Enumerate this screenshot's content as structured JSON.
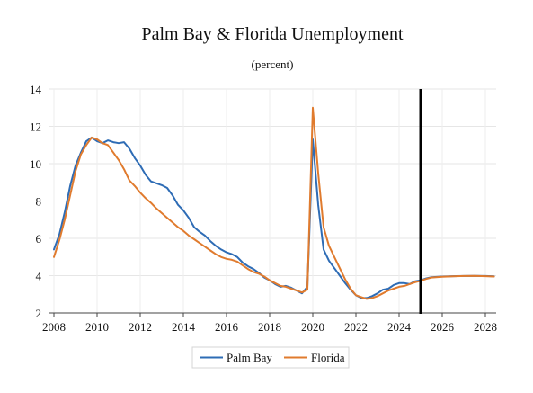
{
  "chart_data": {
    "type": "line",
    "title": "Palm Bay & Florida Unemployment",
    "subtitle": "(percent)",
    "xlabel": "",
    "ylabel": "",
    "xlim": [
      2007.75,
      2028.5
    ],
    "ylim": [
      2,
      14
    ],
    "x_ticks": [
      2008,
      2010,
      2012,
      2014,
      2016,
      2018,
      2020,
      2022,
      2024,
      2026,
      2028
    ],
    "y_ticks": [
      2,
      4,
      6,
      8,
      10,
      12,
      14
    ],
    "grid": true,
    "legend_position": "bottom",
    "forecast_marker_x": 2025.0,
    "series": [
      {
        "name": "Palm Bay",
        "color": "#2e6cb5",
        "points": [
          [
            2008.0,
            5.4
          ],
          [
            2008.25,
            6.2
          ],
          [
            2008.5,
            7.4
          ],
          [
            2008.75,
            8.8
          ],
          [
            2009.0,
            9.9
          ],
          [
            2009.25,
            10.6
          ],
          [
            2009.5,
            11.2
          ],
          [
            2009.75,
            11.4
          ],
          [
            2010.0,
            11.2
          ],
          [
            2010.25,
            11.1
          ],
          [
            2010.5,
            11.25
          ],
          [
            2010.75,
            11.15
          ],
          [
            2011.0,
            11.1
          ],
          [
            2011.25,
            11.15
          ],
          [
            2011.5,
            10.8
          ],
          [
            2011.75,
            10.3
          ],
          [
            2012.0,
            9.9
          ],
          [
            2012.25,
            9.4
          ],
          [
            2012.5,
            9.05
          ],
          [
            2012.75,
            8.95
          ],
          [
            2013.0,
            8.85
          ],
          [
            2013.25,
            8.7
          ],
          [
            2013.5,
            8.3
          ],
          [
            2013.75,
            7.8
          ],
          [
            2014.0,
            7.5
          ],
          [
            2014.25,
            7.1
          ],
          [
            2014.5,
            6.6
          ],
          [
            2014.75,
            6.35
          ],
          [
            2015.0,
            6.15
          ],
          [
            2015.25,
            5.85
          ],
          [
            2015.5,
            5.6
          ],
          [
            2015.75,
            5.4
          ],
          [
            2016.0,
            5.25
          ],
          [
            2016.25,
            5.15
          ],
          [
            2016.5,
            5.0
          ],
          [
            2016.75,
            4.7
          ],
          [
            2017.0,
            4.5
          ],
          [
            2017.25,
            4.35
          ],
          [
            2017.5,
            4.15
          ],
          [
            2017.75,
            3.9
          ],
          [
            2018.0,
            3.75
          ],
          [
            2018.25,
            3.55
          ],
          [
            2018.5,
            3.4
          ],
          [
            2018.75,
            3.45
          ],
          [
            2019.0,
            3.35
          ],
          [
            2019.25,
            3.2
          ],
          [
            2019.5,
            3.05
          ],
          [
            2019.75,
            3.4
          ],
          [
            2020.0,
            11.3
          ],
          [
            2020.25,
            7.8
          ],
          [
            2020.5,
            5.4
          ],
          [
            2020.75,
            4.8
          ],
          [
            2021.0,
            4.4
          ],
          [
            2021.25,
            4.0
          ],
          [
            2021.5,
            3.6
          ],
          [
            2021.75,
            3.25
          ],
          [
            2022.0,
            2.95
          ],
          [
            2022.25,
            2.8
          ],
          [
            2022.5,
            2.8
          ],
          [
            2022.75,
            2.9
          ],
          [
            2023.0,
            3.05
          ],
          [
            2023.25,
            3.25
          ],
          [
            2023.5,
            3.3
          ],
          [
            2023.75,
            3.5
          ],
          [
            2024.0,
            3.6
          ],
          [
            2024.25,
            3.6
          ],
          [
            2024.5,
            3.55
          ],
          [
            2024.75,
            3.7
          ],
          [
            2025.0,
            3.75
          ],
          [
            2025.25,
            3.85
          ],
          [
            2025.5,
            3.92
          ],
          [
            2026.0,
            3.95
          ],
          [
            2026.5,
            3.97
          ],
          [
            2027.0,
            3.98
          ],
          [
            2027.5,
            3.99
          ],
          [
            2028.0,
            3.98
          ],
          [
            2028.4,
            3.96
          ]
        ]
      },
      {
        "name": "Florida",
        "color": "#e07b2e",
        "points": [
          [
            2008.0,
            5.0
          ],
          [
            2008.25,
            5.9
          ],
          [
            2008.5,
            7.0
          ],
          [
            2008.75,
            8.3
          ],
          [
            2009.0,
            9.6
          ],
          [
            2009.25,
            10.5
          ],
          [
            2009.5,
            11.0
          ],
          [
            2009.75,
            11.4
          ],
          [
            2010.0,
            11.3
          ],
          [
            2010.25,
            11.1
          ],
          [
            2010.5,
            11.0
          ],
          [
            2010.75,
            10.6
          ],
          [
            2011.0,
            10.2
          ],
          [
            2011.25,
            9.7
          ],
          [
            2011.5,
            9.1
          ],
          [
            2011.75,
            8.8
          ],
          [
            2012.0,
            8.45
          ],
          [
            2012.25,
            8.15
          ],
          [
            2012.5,
            7.9
          ],
          [
            2012.75,
            7.6
          ],
          [
            2013.0,
            7.35
          ],
          [
            2013.25,
            7.1
          ],
          [
            2013.5,
            6.85
          ],
          [
            2013.75,
            6.6
          ],
          [
            2014.0,
            6.4
          ],
          [
            2014.25,
            6.15
          ],
          [
            2014.5,
            5.95
          ],
          [
            2014.75,
            5.75
          ],
          [
            2015.0,
            5.55
          ],
          [
            2015.25,
            5.35
          ],
          [
            2015.5,
            5.15
          ],
          [
            2015.75,
            5.0
          ],
          [
            2016.0,
            4.9
          ],
          [
            2016.25,
            4.85
          ],
          [
            2016.5,
            4.75
          ],
          [
            2016.75,
            4.55
          ],
          [
            2017.0,
            4.35
          ],
          [
            2017.25,
            4.2
          ],
          [
            2017.5,
            4.1
          ],
          [
            2017.75,
            3.95
          ],
          [
            2018.0,
            3.75
          ],
          [
            2018.25,
            3.6
          ],
          [
            2018.5,
            3.45
          ],
          [
            2018.75,
            3.4
          ],
          [
            2019.0,
            3.3
          ],
          [
            2019.25,
            3.2
          ],
          [
            2019.5,
            3.1
          ],
          [
            2019.75,
            3.25
          ],
          [
            2020.0,
            13.0
          ],
          [
            2020.25,
            9.5
          ],
          [
            2020.5,
            6.6
          ],
          [
            2020.75,
            5.6
          ],
          [
            2021.0,
            5.0
          ],
          [
            2021.25,
            4.4
          ],
          [
            2021.5,
            3.8
          ],
          [
            2021.75,
            3.3
          ],
          [
            2022.0,
            2.95
          ],
          [
            2022.25,
            2.85
          ],
          [
            2022.5,
            2.75
          ],
          [
            2022.75,
            2.8
          ],
          [
            2023.0,
            2.9
          ],
          [
            2023.25,
            3.05
          ],
          [
            2023.5,
            3.2
          ],
          [
            2023.75,
            3.3
          ],
          [
            2024.0,
            3.4
          ],
          [
            2024.25,
            3.45
          ],
          [
            2024.5,
            3.55
          ],
          [
            2024.75,
            3.65
          ],
          [
            2025.0,
            3.72
          ],
          [
            2025.25,
            3.82
          ],
          [
            2025.5,
            3.9
          ],
          [
            2026.0,
            3.94
          ],
          [
            2026.5,
            3.96
          ],
          [
            2027.0,
            3.98
          ],
          [
            2027.5,
            3.99
          ],
          [
            2028.0,
            3.97
          ],
          [
            2028.4,
            3.95
          ]
        ]
      }
    ]
  }
}
